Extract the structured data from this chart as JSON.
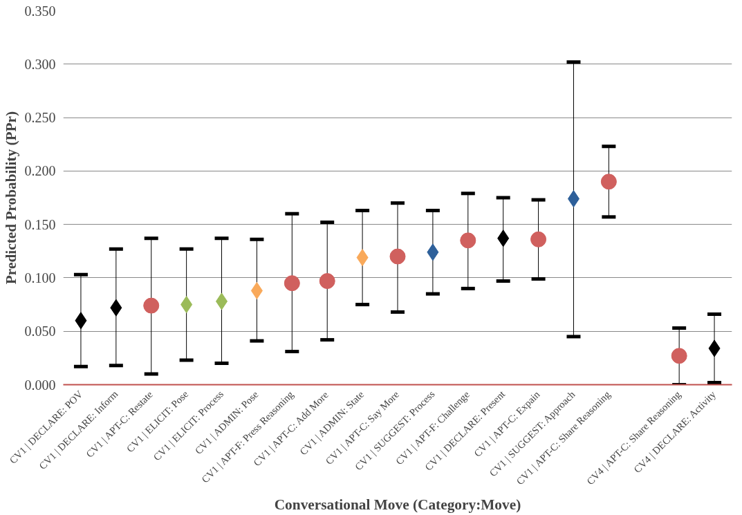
{
  "chart_data": {
    "type": "scatter",
    "xlabel": "Conversational Move (Category:Move)",
    "ylabel": "Predicted Probability (PPr)",
    "categories": [
      "CV1 | DECLARE: POV",
      "CV1 | DECLARE: Inform",
      "CV1 | APT-C: Restate",
      "CV1 | ELICIT: Pose",
      "CV1 | ELICIT: Process",
      "CV1 | ADMIN: Pose",
      "CV1 | APT-F: Press Reasoning",
      "CV1 | APT-C: Add More",
      "CV1 | ADMIN: State",
      "CV1 | APT-C: Say More",
      "CV1 | SUGGEST: Process",
      "CV1 | APT-F: Challenge",
      "CV1 | DECLARE: Present",
      "CV1 | APT-C: Expain",
      "CV1 | SUGGEST: Approach",
      "CV1 | APT-C: Share Reasoning",
      null,
      "CV4 | APT-C: Share Reasoning",
      "CV4 | DECLARE: Activity"
    ],
    "ylim": [
      0,
      0.35
    ],
    "yticks": [
      {
        "value": 0,
        "label": "0.000"
      },
      {
        "value": 0.05,
        "label": "0.050"
      },
      {
        "value": 0.1,
        "label": "0.100"
      },
      {
        "value": 0.15,
        "label": "0.150"
      },
      {
        "value": 0.2,
        "label": "0.200"
      },
      {
        "value": 0.25,
        "label": "0.250"
      },
      {
        "value": 0.3,
        "label": "0.300"
      },
      {
        "value": 0.35,
        "label": "0.350"
      }
    ],
    "grid": "y",
    "series": [
      {
        "color": "#000000",
        "marker": "diamond",
        "values": [
          0.06,
          0.072,
          null,
          null,
          null,
          null,
          null,
          null,
          null,
          null,
          null,
          null,
          0.137,
          null,
          null,
          null,
          null,
          null,
          0.034
        ],
        "errors": [
          [
            0.017,
            0.103
          ],
          [
            0.018,
            0.127
          ],
          null,
          null,
          null,
          null,
          null,
          null,
          null,
          null,
          null,
          null,
          [
            0.097,
            0.175
          ],
          null,
          null,
          null,
          null,
          null,
          [
            0.002,
            0.066
          ]
        ]
      },
      {
        "color": "#d0605e",
        "marker": "circle",
        "values": [
          null,
          null,
          0.074,
          null,
          null,
          null,
          0.095,
          0.097,
          null,
          0.12,
          null,
          0.135,
          null,
          0.136,
          null,
          0.19,
          null,
          0.027,
          null
        ],
        "errors": [
          null,
          null,
          [
            0.01,
            0.137
          ],
          null,
          null,
          null,
          [
            0.031,
            0.16
          ],
          [
            0.042,
            0.152
          ],
          null,
          [
            0.068,
            0.17
          ],
          null,
          [
            0.09,
            0.179
          ],
          null,
          [
            0.099,
            0.173
          ],
          null,
          [
            0.157,
            0.223
          ],
          null,
          [
            0.0,
            0.053
          ],
          null
        ]
      },
      {
        "color": "#9bbb59",
        "marker": "diamond",
        "values": [
          null,
          null,
          null,
          0.075,
          0.078,
          null,
          null,
          null,
          null,
          null,
          null,
          null,
          null,
          null,
          null,
          null,
          null,
          null,
          null
        ],
        "errors": [
          null,
          null,
          null,
          [
            0.023,
            0.127
          ],
          [
            0.02,
            0.137
          ],
          null,
          null,
          null,
          null,
          null,
          null,
          null,
          null,
          null,
          null,
          null,
          null,
          null,
          null
        ]
      },
      {
        "color": "#f9a95a",
        "marker": "diamond",
        "values": [
          null,
          null,
          null,
          null,
          null,
          0.088,
          null,
          null,
          0.119,
          null,
          null,
          null,
          null,
          null,
          null,
          null,
          null,
          null,
          null
        ],
        "errors": [
          null,
          null,
          null,
          null,
          null,
          [
            0.041,
            0.136
          ],
          null,
          null,
          [
            0.075,
            0.163
          ],
          null,
          null,
          null,
          null,
          null,
          null,
          null,
          null,
          null,
          null
        ]
      },
      {
        "color": "#2e609a",
        "marker": "diamond",
        "values": [
          null,
          null,
          null,
          null,
          null,
          null,
          null,
          null,
          null,
          null,
          0.124,
          null,
          null,
          null,
          0.174,
          null,
          null,
          null,
          null
        ],
        "errors": [
          null,
          null,
          null,
          null,
          null,
          null,
          null,
          null,
          null,
          null,
          [
            0.085,
            0.163
          ],
          null,
          null,
          null,
          [
            0.045,
            0.302
          ],
          null,
          null,
          null,
          null
        ]
      }
    ]
  }
}
